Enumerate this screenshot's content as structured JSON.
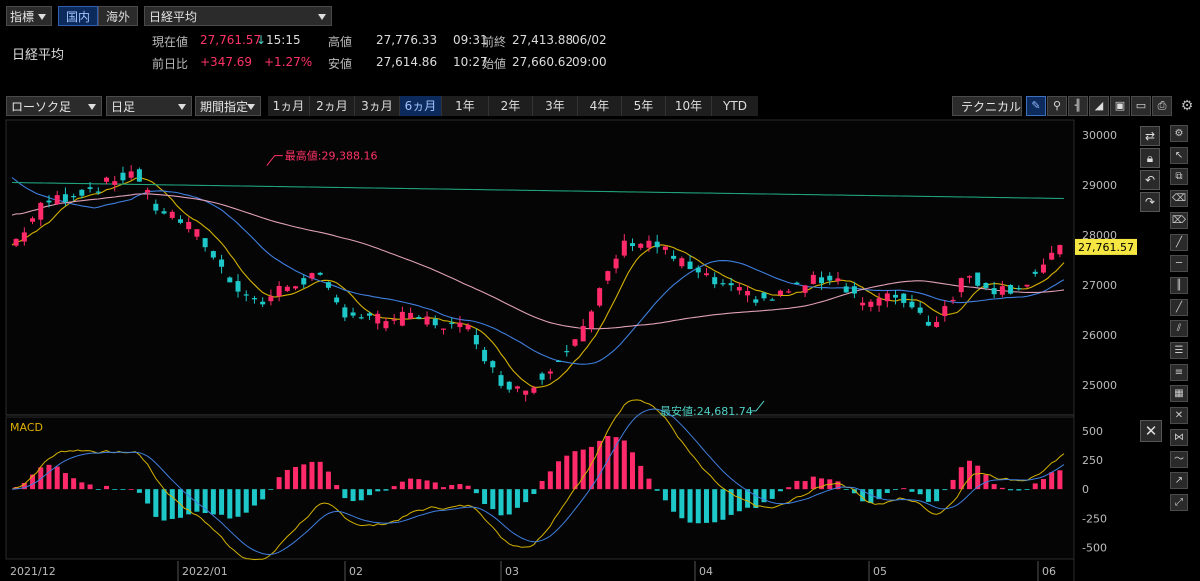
{
  "topbar": {
    "indicator_dropdown": "指標",
    "market_tabs": [
      "国内",
      "海外"
    ],
    "index_select": "日経平均"
  },
  "quote": {
    "name": "日経平均",
    "current_label": "現在値",
    "current_value": "27,761.57",
    "current_arrow": "↓",
    "current_time": "15:15",
    "high_label": "高値",
    "high_value": "27,776.33",
    "high_time": "09:31",
    "prev_close_label": "前終",
    "prev_close_value": "27,413.88",
    "prev_close_date": "06/02",
    "change_label": "前日比",
    "change_value": "+347.69",
    "change_pct": "+1.27%",
    "low_label": "安値",
    "low_value": "27,614.86",
    "low_time": "10:27",
    "open_label": "始値",
    "open_value": "27,660.62",
    "open_time": "09:00"
  },
  "toolbar": {
    "chart_type": "ローソク足",
    "interval": "日足",
    "range_select": "期間指定",
    "periods": [
      "1ヵ月",
      "2ヵ月",
      "3ヵ月",
      "6ヵ月",
      "1年",
      "2年",
      "3年",
      "4年",
      "5年",
      "10年",
      "YTD"
    ],
    "selected_period": "6ヵ月",
    "technical_button": "テクニカル"
  },
  "chart_data": [
    {
      "type": "candlestick",
      "title": "",
      "y_ticks": [
        30000,
        29000,
        28000,
        27000,
        26000,
        25000
      ],
      "ylim": [
        24400,
        30300
      ],
      "last_price_label": "27,761.57",
      "annotations": {
        "high": "最高値:29,388.16",
        "low": "最安値:24,681.74"
      },
      "x_labels": [
        "2021/12",
        "2022/01",
        "02",
        "03",
        "04",
        "05",
        "06"
      ],
      "grid": false,
      "series": [
        {
          "name": "ma_short_yellow",
          "color": "#d4b200"
        },
        {
          "name": "ma_mid_blue",
          "color": "#3f7fdf"
        },
        {
          "name": "ma_long_pink",
          "color": "#e0a0b8"
        },
        {
          "name": "ma_longest_green",
          "color": "#1fa07a"
        }
      ],
      "colors": {
        "up": "#ff2a6a",
        "down": "#1ec8c8"
      }
    },
    {
      "type": "bar",
      "title": "MACD",
      "y_ticks": [
        500,
        250,
        0,
        -250,
        -500
      ],
      "ylim": [
        -600,
        620
      ],
      "series": [
        {
          "name": "histogram",
          "colors": {
            "pos": "#ff2a6a",
            "neg": "#1ec8c8"
          }
        },
        {
          "name": "macd_yellow",
          "color": "#d4b200"
        },
        {
          "name": "signal_blue",
          "color": "#3f7fdf"
        }
      ]
    }
  ],
  "right_toolbar_icons": [
    "settings-icon",
    "cursor-icon",
    "layers-icon",
    "eraser-icon",
    "eraser-all-icon",
    "trend-line-icon",
    "horizontal-line-icon",
    "vertical-lines-icon",
    "diagonal-line-icon",
    "parallel-lines-icon",
    "fib-icon",
    "channel-icon",
    "grid-icon",
    "cross-icon",
    "pattern-icon",
    "wave-icon",
    "arrow-up-icon",
    "zoom-fit-icon"
  ]
}
